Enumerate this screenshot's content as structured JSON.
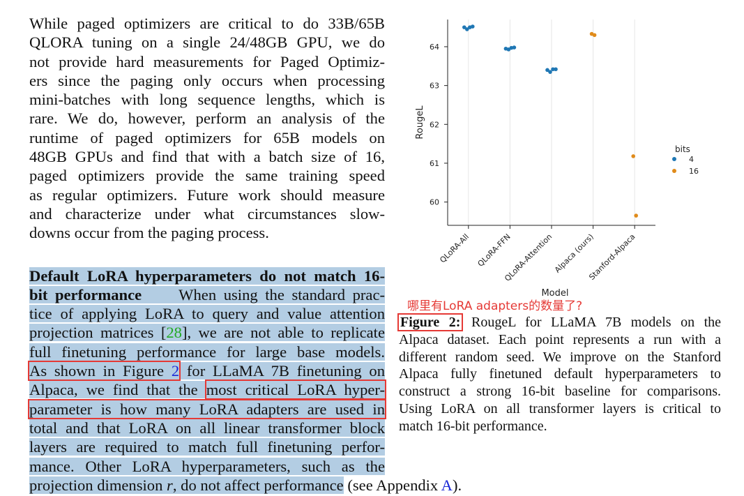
{
  "left_column": {
    "para1_lines": [
      "While paged optimizers are critical to do 33B/65B",
      "QLORA tuning on a single 24/48GB GPU, we do",
      "not provide hard measurements for Paged Optimiz-",
      "ers since the paging only occurs when processing",
      "mini-batches with long sequence lengths, which is",
      "rare.  We do, however, perform an analysis of the",
      "runtime of paged optimizers for 65B models on",
      "48GB GPUs and find that with a batch size of 16,",
      "paged optimizers provide the same training speed",
      "as regular optimizers. Future work should measure",
      "and characterize under what circumstances slow-",
      "downs occur from the paging process."
    ],
    "para2": {
      "heading_line1": "Default LoRA hyperparameters do not match 16-",
      "heading_line2_bold": "bit performance",
      "line2_rest": "When using the standard prac-",
      "line3": "tice of applying LoRA to query and value attention",
      "line4_a": "projection matrices [",
      "citation": "28",
      "line4_b": "], we are not able to replicate",
      "line5": "full finetuning performance for large base models.",
      "line6_boxed_a": "As shown in Figure ",
      "line6_fig_ref": "2",
      "line6_rest": " for LLaMA 7B finetuning on",
      "line7_a": "Alpaca, we find that the ",
      "line7_boxed": "most critical LoRA hyper-",
      "line8_boxed": "parameter is how many LoRA adapters are used in",
      "line9": "total and that LoRA on all linear transformer block",
      "line10": "layers are required to match full finetuning perfor-",
      "line11": "mance. Other LoRA hyperparameters, such as the",
      "line12_a": "projection dimension ",
      "line12_var": "r",
      "line12_b": ", do not affect performance",
      "line12_tail_a": " (see Appendix ",
      "line12_appendix": "A",
      "line12_tail_b": ")."
    }
  },
  "annotation": "哪里有LoRA adapters的数量了?",
  "caption": {
    "label": "Figure 2:",
    "line1_rest": " RougeL for LLaMA 7B models on the",
    "lines": [
      "Alpaca dataset. Each point represents a run with a",
      "different random seed. We improve on the Stanford",
      "Alpaca fully finetuned default hyperparameters to",
      "construct a strong 16-bit baseline for comparisons.",
      "Using LoRA on all transformer layers is critical to",
      "match 16-bit performance."
    ]
  },
  "colors": {
    "bits_4": "#1f77b4",
    "bits_16": "#e08b1a",
    "highlight": "#b3cde3",
    "annotation_red": "#e53935"
  },
  "chart_data": {
    "type": "scatter",
    "xlabel": "Model",
    "ylabel": "RougeL",
    "categories": [
      "QLoRA-All",
      "QLoRA-FFN",
      "QLoRA-Attention",
      "Alpaca (ours)",
      "Stanford-Alpaca"
    ],
    "ylim": [
      59.4,
      64.7
    ],
    "yticks": [
      60,
      61,
      62,
      63,
      64
    ],
    "legend_title": "bits",
    "legend_position": "right",
    "grid": "vertical-only",
    "series": [
      {
        "name": "4",
        "color": "#1f77b4",
        "points": [
          {
            "category": "QLoRA-All",
            "values": [
              64.5,
              64.45,
              64.5,
              64.52
            ]
          },
          {
            "category": "QLoRA-FFN",
            "values": [
              63.95,
              63.93,
              63.97,
              63.98
            ]
          },
          {
            "category": "QLoRA-Attention",
            "values": [
              63.4,
              63.35,
              63.42,
              63.42
            ]
          }
        ]
      },
      {
        "name": "16",
        "color": "#e08b1a",
        "points": [
          {
            "category": "Alpaca (ours)",
            "values": [
              64.33,
              64.3
            ]
          },
          {
            "category": "Stanford-Alpaca",
            "values": [
              61.18,
              59.65
            ]
          }
        ]
      }
    ]
  }
}
